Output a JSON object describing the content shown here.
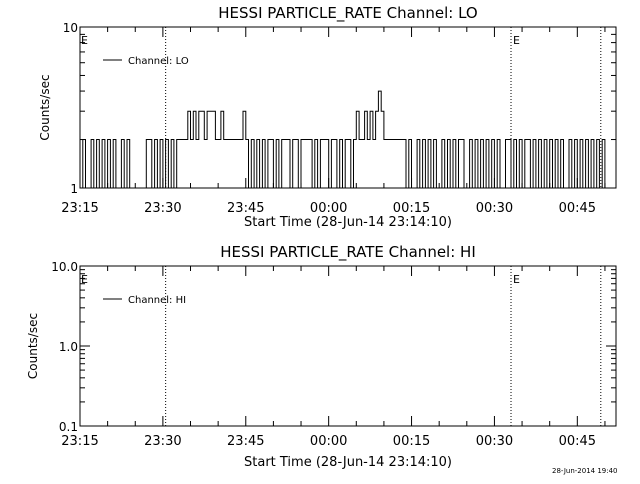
{
  "footer": {
    "timestamp": "28-Jun-2014 19:40"
  },
  "chart_data": [
    {
      "type": "line",
      "title": "HESSI PARTICLE_RATE Channel: LO",
      "xlabel": "Start Time (28-Jun-14 23:14:10)",
      "ylabel": "Counts/sec",
      "yscale": "log",
      "ylim": [
        1,
        10
      ],
      "ytick_labels": [
        "1",
        "10"
      ],
      "xlim_minutes_after_2315": [
        0,
        97
      ],
      "xtick_labels": [
        "23:15",
        "23:30",
        "23:45",
        "00:00",
        "00:15",
        "00:30",
        "00:45"
      ],
      "legend": {
        "label": "Channel: LO",
        "position": "top-left"
      },
      "markers": [
        {
          "label": "E",
          "position": "left-edge"
        },
        {
          "label": "E",
          "position": "right"
        }
      ],
      "dotted_lines_time": [
        "23:30:30",
        "00:33:00",
        "00:49:15"
      ],
      "series": [
        {
          "x_minutes_after_2315": [
            0.0,
            0.5,
            1.0,
            1.5,
            2.0,
            2.5,
            3.0,
            3.5,
            4.0,
            4.5,
            5.0,
            5.5,
            6.0,
            6.5,
            7.0,
            7.5,
            8.0,
            8.5,
            9.0,
            9.5,
            10.0,
            10.5,
            11.0,
            11.5,
            12.0,
            12.5,
            13.0,
            13.5,
            14.0,
            14.5,
            15.0,
            15.5,
            16.0,
            16.5,
            17.0,
            17.5,
            18.0,
            18.5,
            19.0,
            19.5,
            20.0,
            20.5,
            21.0,
            21.5,
            22.0,
            22.5,
            23.0,
            23.5,
            24.0,
            24.5,
            25.0,
            25.5,
            26.0,
            26.5,
            27.0,
            27.5,
            28.0,
            28.5,
            29.0,
            29.5,
            30.0,
            30.5,
            31.0,
            31.5,
            32.0,
            32.5,
            33.0,
            33.5,
            34.0,
            34.5,
            35.0,
            35.5,
            36.0,
            36.5,
            37.0,
            37.5,
            38.0,
            38.5,
            39.0,
            39.5,
            40.0,
            40.5,
            41.0,
            41.5,
            42.0,
            42.5,
            43.0,
            43.5,
            44.0,
            44.5,
            45.0,
            45.5,
            46.0,
            46.5,
            47.0,
            47.5,
            48.0,
            48.5,
            49.0,
            49.5,
            50.0,
            50.5,
            51.0,
            51.5,
            52.0,
            52.5,
            53.0,
            53.5,
            54.0,
            54.5,
            55.0,
            55.5,
            56.0,
            56.5,
            57.0,
            57.5,
            58.0,
            58.5,
            59.0,
            59.5,
            60.0,
            60.5,
            61.0,
            61.5,
            62.0,
            62.5,
            63.0,
            63.5,
            64.0,
            64.5,
            65.0,
            65.5,
            66.0,
            66.5,
            67.0,
            67.5,
            68.0,
            68.5,
            69.0,
            69.5,
            70.0,
            70.5,
            71.0,
            71.5,
            72.0,
            72.5,
            73.0,
            73.5,
            74.0,
            74.5,
            75.0,
            75.5,
            76.0,
            76.5,
            77.0,
            77.5,
            78.0,
            78.5,
            79.0,
            79.5,
            80.0,
            80.5,
            81.0,
            81.5,
            82.0,
            82.5,
            83.0,
            83.5,
            84.0,
            84.5,
            85.0,
            85.5,
            86.0,
            86.5,
            87.0,
            87.5,
            88.0,
            88.5,
            89.0,
            89.5,
            90.0,
            90.5,
            91.0,
            91.5,
            92.0,
            92.5,
            93.0,
            93.5,
            94.0,
            94.5,
            95.0
          ],
          "values": [
            1,
            2,
            1,
            1,
            2,
            1,
            2,
            1,
            2,
            1,
            2,
            1,
            2,
            1,
            1,
            2,
            1,
            2,
            1,
            1,
            1,
            1,
            1,
            1,
            2,
            2,
            1,
            2,
            1,
            2,
            1,
            2,
            1,
            2,
            1,
            2,
            2,
            2,
            2,
            3,
            2,
            3,
            2,
            3,
            3,
            2,
            3,
            3,
            3,
            2,
            2,
            3,
            2,
            2,
            2,
            2,
            2,
            2,
            2,
            3,
            2,
            1,
            2,
            1,
            2,
            1,
            2,
            1,
            2,
            2,
            1,
            2,
            1,
            2,
            2,
            2,
            1,
            2,
            2,
            1,
            2,
            2,
            2,
            2,
            1,
            2,
            1,
            2,
            2,
            2,
            1,
            2,
            2,
            1,
            2,
            1,
            2,
            2,
            1,
            2,
            3,
            2,
            2,
            3,
            2,
            3,
            2,
            3,
            4,
            3,
            2,
            2,
            2,
            2,
            2,
            2,
            2,
            2,
            1,
            2,
            1,
            1,
            2,
            1,
            2,
            1,
            2,
            1,
            2,
            1,
            1,
            2,
            1,
            2,
            1,
            2,
            1,
            2,
            2,
            1,
            1,
            2,
            1,
            2,
            1,
            2,
            1,
            2,
            1,
            2,
            1,
            2,
            1,
            1,
            2,
            2,
            1,
            2,
            1,
            2,
            1,
            2,
            2,
            1,
            2,
            1,
            2,
            1,
            2,
            1,
            2,
            1,
            2,
            1,
            2,
            1,
            1,
            2,
            1,
            2,
            1,
            2,
            1,
            2,
            1,
            2,
            1,
            2,
            1,
            2,
            1
          ]
        }
      ]
    },
    {
      "type": "line",
      "title": "HESSI PARTICLE_RATE Channel: HI",
      "xlabel": "Start Time (28-Jun-14 23:14:10)",
      "ylabel": "Counts/sec",
      "yscale": "log",
      "ylim": [
        0.1,
        10
      ],
      "ytick_labels": [
        "0.1",
        "1.0",
        "10.0"
      ],
      "xlim_minutes_after_2315": [
        0,
        97
      ],
      "xtick_labels": [
        "23:15",
        "23:30",
        "23:45",
        "00:00",
        "00:15",
        "00:30",
        "00:45"
      ],
      "legend": {
        "label": "Channel: HI",
        "position": "top-left"
      },
      "markers": [
        {
          "label": "E",
          "position": "left-edge"
        },
        {
          "label": "E",
          "position": "right"
        }
      ],
      "dotted_lines_time": [
        "23:30:30",
        "00:33:00",
        "00:49:15"
      ],
      "series": [
        {
          "x_minutes_after_2315": [],
          "values": []
        }
      ]
    }
  ]
}
